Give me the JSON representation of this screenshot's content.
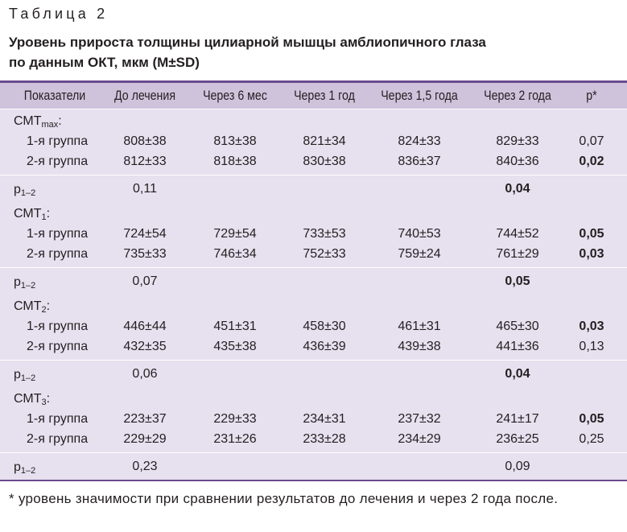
{
  "caption": "Таблица 2",
  "title_line1": "Уровень прироста толщины цилиарной мышцы амблиопичного глаза",
  "title_line2": "по данным ОКТ, мкм (M±SD)",
  "headers": [
    "Показатели",
    "До лечения",
    "Через 6 мес",
    "Через 1 год",
    "Через 1,5 года",
    "Через 2 года",
    "p*"
  ],
  "blocks": [
    {
      "label": "СМТ",
      "label_sub": "max",
      "rows": [
        {
          "name": "1-я группа",
          "values": [
            "808±38",
            "813±38",
            "821±34",
            "824±33",
            "829±33"
          ],
          "p": "0,07"
        },
        {
          "name": "2-я группа",
          "values": [
            "812±33",
            "818±38",
            "830±38",
            "836±37",
            "840±36"
          ],
          "p": "0,02"
        }
      ],
      "p12_label": "p",
      "p12_sub": "1–2",
      "p12_before": "0,11",
      "p12_after": "0,04"
    },
    {
      "label": "СМТ",
      "label_sub": "1",
      "rows": [
        {
          "name": "1-я группа",
          "values": [
            "724±54",
            "729±54",
            "733±53",
            "740±53",
            "744±52"
          ],
          "p": "0,05"
        },
        {
          "name": "2-я группа",
          "values": [
            "735±33",
            "746±34",
            "752±33",
            "759±24",
            "761±29"
          ],
          "p": "0,03"
        }
      ],
      "p12_label": "p",
      "p12_sub": "1–2",
      "p12_before": "0,07",
      "p12_after": "0,05"
    },
    {
      "label": "СМТ",
      "label_sub": "2",
      "rows": [
        {
          "name": "1-я группа",
          "values": [
            "446±44",
            "451±31",
            "458±30",
            "461±31",
            "465±30"
          ],
          "p": "0,03"
        },
        {
          "name": "2-я группа",
          "values": [
            "432±35",
            "435±38",
            "436±39",
            "439±38",
            "441±36"
          ],
          "p": "0,13"
        }
      ],
      "p12_label": "p",
      "p12_sub": "1–2",
      "p12_before": "0,06",
      "p12_after": "0,04"
    },
    {
      "label": "СМТ",
      "label_sub": "3",
      "rows": [
        {
          "name": "1-я группа",
          "values": [
            "223±37",
            "229±33",
            "234±31",
            "237±32",
            "241±17"
          ],
          "p": "0,05"
        },
        {
          "name": "2-я группа",
          "values": [
            "229±29",
            "231±26",
            "233±28",
            "234±29",
            "236±25"
          ],
          "p": "0,25"
        }
      ],
      "p12_label": "p",
      "p12_sub": "1–2",
      "p12_before": "0,23",
      "p12_after": "0,09"
    }
  ],
  "footnote": "* уровень значимости при сравнении результатов до лечения и через 2 года после."
}
